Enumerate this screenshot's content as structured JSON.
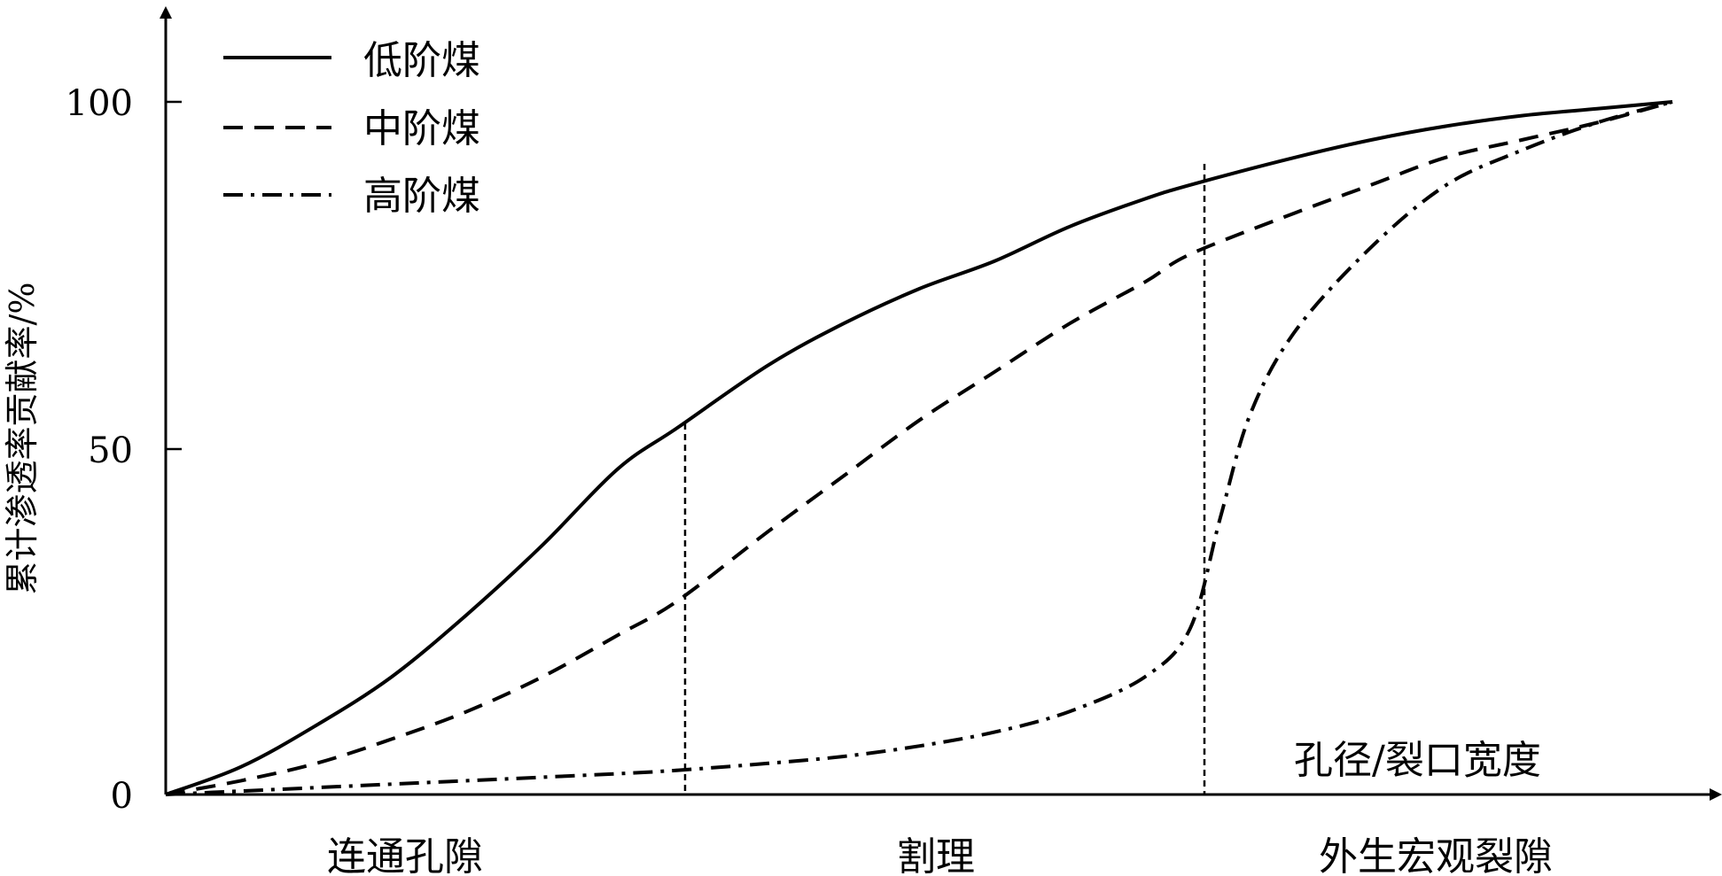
{
  "chart_data": {
    "type": "line",
    "ylabel": "累计渗透率贡献率/%",
    "xlabel": "孔径/裂口宽度",
    "yticks": [
      "0",
      "50",
      "100"
    ],
    "ylim": [
      0,
      110
    ],
    "xlim": [
      0,
      1
    ],
    "grid": false,
    "legend_position": "top-left",
    "regions": [
      {
        "label": "连通孔隙",
        "start": 0.0,
        "end": 0.34
      },
      {
        "label": "割理",
        "start": 0.34,
        "end": 0.68
      },
      {
        "label": "外生宏观裂隙",
        "start": 0.68,
        "end": 1.0
      }
    ],
    "boundaries": [
      0.34,
      0.68
    ],
    "series": [
      {
        "name": "低阶煤",
        "style": "solid",
        "x": [
          0,
          0.05,
          0.1,
          0.15,
          0.2,
          0.25,
          0.3,
          0.34,
          0.4,
          0.45,
          0.5,
          0.55,
          0.6,
          0.65,
          0.68,
          0.75,
          0.8,
          0.85,
          0.9,
          0.95,
          1.0
        ],
        "y": [
          0,
          4,
          10,
          17,
          26,
          36,
          47,
          53,
          62,
          68,
          73,
          77,
          82,
          86,
          88,
          92,
          94.5,
          96.5,
          98,
          99,
          100
        ]
      },
      {
        "name": "中阶煤",
        "style": "dashed",
        "x": [
          0,
          0.05,
          0.1,
          0.15,
          0.2,
          0.25,
          0.3,
          0.34,
          0.4,
          0.45,
          0.5,
          0.55,
          0.6,
          0.65,
          0.68,
          0.75,
          0.8,
          0.85,
          0.9,
          0.95,
          1.0
        ],
        "y": [
          0,
          2,
          4.5,
          8,
          12,
          17,
          23,
          28,
          38,
          46,
          54,
          61,
          68,
          74,
          78,
          84,
          88,
          92,
          94.5,
          97,
          100
        ]
      },
      {
        "name": "高阶煤",
        "style": "dash-dot",
        "x": [
          0,
          0.05,
          0.1,
          0.15,
          0.2,
          0.25,
          0.3,
          0.34,
          0.4,
          0.45,
          0.5,
          0.55,
          0.6,
          0.65,
          0.68,
          0.7,
          0.72,
          0.75,
          0.8,
          0.85,
          0.9,
          0.95,
          1.0
        ],
        "y": [
          0,
          0.5,
          1,
          1.5,
          2,
          2.5,
          3,
          3.5,
          4.5,
          5.5,
          7,
          9,
          12,
          17,
          24,
          40,
          55,
          67,
          79,
          88,
          93,
          97,
          100
        ]
      }
    ]
  }
}
